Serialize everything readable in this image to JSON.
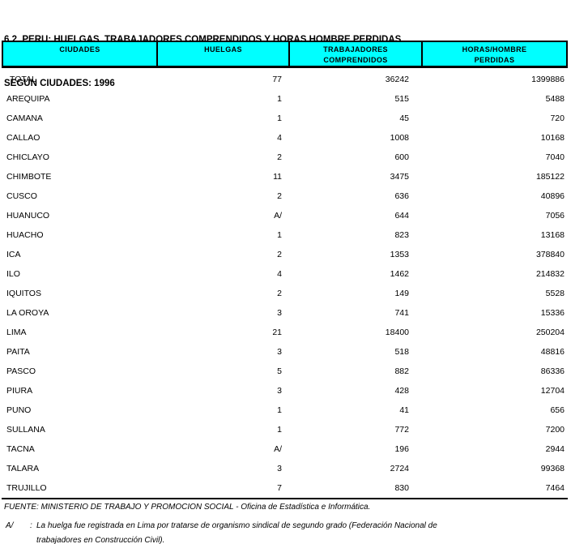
{
  "title": {
    "line1": "6.2  PERU: HUELGAS, TRABAJADORES COMPRENDIDOS Y HORAS HOMBRE PERDIDAS,",
    "line2": "SEGUN CIUDADES: 1996"
  },
  "colors": {
    "header_bg": "#00FFFF",
    "border": "#000000",
    "text": "#000000",
    "background": "#FFFFFF"
  },
  "table": {
    "columns": [
      {
        "line1": "CIUDADES",
        "line2": ""
      },
      {
        "line1": "HUELGAS",
        "line2": ""
      },
      {
        "line1": "TRABAJADORES",
        "line2": "COMPRENDIDOS"
      },
      {
        "line1": "HORAS/HOMBRE",
        "line2": "PERDIDAS"
      }
    ],
    "rows": [
      {
        "city": "TOTAL",
        "huelgas": "77",
        "trabajadores": "36242",
        "horas": "1399886",
        "indent": true
      },
      {
        "city": "AREQUIPA",
        "huelgas": "1",
        "trabajadores": "515",
        "horas": "5488"
      },
      {
        "city": "CAMANA",
        "huelgas": "1",
        "trabajadores": "45",
        "horas": "720"
      },
      {
        "city": "CALLAO",
        "huelgas": "4",
        "trabajadores": "1008",
        "horas": "10168"
      },
      {
        "city": "CHICLAYO",
        "huelgas": "2",
        "trabajadores": "600",
        "horas": "7040"
      },
      {
        "city": "CHIMBOTE",
        "huelgas": "11",
        "trabajadores": "3475",
        "horas": "185122"
      },
      {
        "city": "CUSCO",
        "huelgas": "2",
        "trabajadores": "636",
        "horas": "40896"
      },
      {
        "city": "HUANUCO",
        "huelgas": "A/",
        "trabajadores": "644",
        "horas": "7056"
      },
      {
        "city": "HUACHO",
        "huelgas": "1",
        "trabajadores": "823",
        "horas": "13168"
      },
      {
        "city": "ICA",
        "huelgas": "2",
        "trabajadores": "1353",
        "horas": "378840"
      },
      {
        "city": "ILO",
        "huelgas": "4",
        "trabajadores": "1462",
        "horas": "214832"
      },
      {
        "city": "IQUITOS",
        "huelgas": "2",
        "trabajadores": "149",
        "horas": "5528"
      },
      {
        "city": "LA OROYA",
        "huelgas": "3",
        "trabajadores": "741",
        "horas": "15336"
      },
      {
        "city": "LIMA",
        "huelgas": "21",
        "trabajadores": "18400",
        "horas": "250204"
      },
      {
        "city": "PAITA",
        "huelgas": "3",
        "trabajadores": "518",
        "horas": "48816"
      },
      {
        "city": "PASCO",
        "huelgas": "5",
        "trabajadores": "882",
        "horas": "86336"
      },
      {
        "city": "PIURA",
        "huelgas": "3",
        "trabajadores": "428",
        "horas": "12704"
      },
      {
        "city": "PUNO",
        "huelgas": "1",
        "trabajadores": "41",
        "horas": "656"
      },
      {
        "city": "SULLANA",
        "huelgas": "1",
        "trabajadores": "772",
        "horas": "7200"
      },
      {
        "city": "TACNA",
        "huelgas": "A/",
        "trabajadores": "196",
        "horas": "2944"
      },
      {
        "city": "TALARA",
        "huelgas": "3",
        "trabajadores": "2724",
        "horas": "99368"
      },
      {
        "city": "TRUJILLO",
        "huelgas": "7",
        "trabajadores": "830",
        "horas": "7464"
      }
    ]
  },
  "footer": {
    "source": "FUENTE: MINISTERIO DE TRABAJO Y PROMOCION SOCIAL - Oficina de Estadística e Informática.",
    "footnote": {
      "marker": "A/",
      "colon": ":",
      "line1": "La huelga fue registrada en Lima por tratarse de organismo sindical de segundo grado (Federación Nacional de",
      "line2": "trabajadores en Construcción Civil)."
    }
  }
}
